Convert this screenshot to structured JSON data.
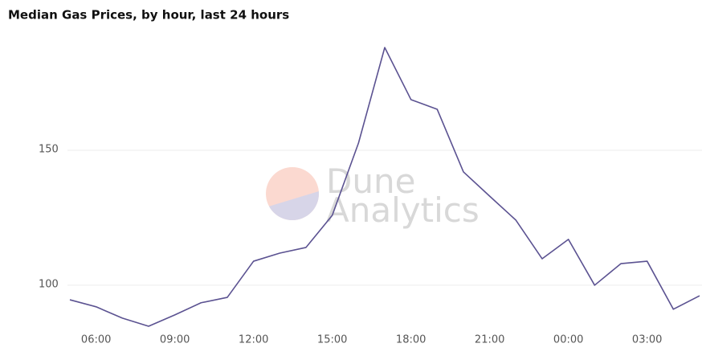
{
  "chart_data": {
    "type": "line",
    "title": "Median Gas Prices, by hour, last 24 hours",
    "watermark": [
      "Dune",
      "Analytics"
    ],
    "categories": [
      null,
      "06:00",
      null,
      null,
      "09:00",
      null,
      null,
      "12:00",
      null,
      null,
      "15:00",
      null,
      null,
      "18:00",
      null,
      null,
      "21:00",
      null,
      null,
      "00:00",
      null,
      null,
      "03:00",
      null,
      null
    ],
    "series": [
      {
        "color": "#5b5291",
        "values": [
          94.6,
          92.0,
          87.8,
          84.8,
          89.0,
          93.5,
          95.5,
          108.9,
          111.9,
          114.0,
          125.9,
          152.7,
          188.1,
          168.8,
          165.2,
          142.0,
          133.0,
          124.1,
          109.8,
          117.0,
          100.0,
          108.0,
          108.9,
          91.1,
          96.1
        ]
      }
    ],
    "ylim": [
      83.6,
      193.8
    ],
    "yticks": [
      100,
      150
    ],
    "grid": true
  }
}
